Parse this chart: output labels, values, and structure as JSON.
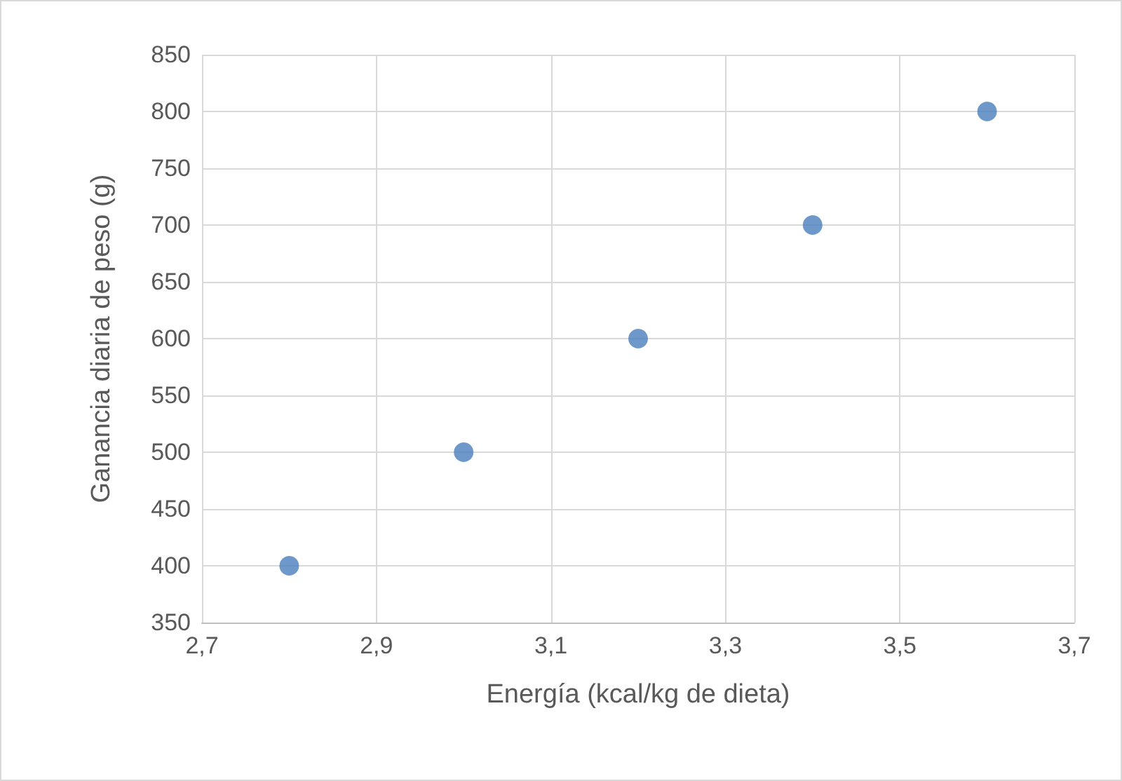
{
  "chart_data": {
    "type": "scatter",
    "xlabel": "Energía (kcal/kg de dieta)",
    "ylabel": "Ganancia diaria de peso (g)",
    "x": [
      2.8,
      3.0,
      3.2,
      3.4,
      3.6
    ],
    "series": [
      {
        "color": "#4a7ebb",
        "values": [
          400,
          500,
          600,
          700,
          800
        ]
      }
    ],
    "xlim": [
      2.7,
      3.7
    ],
    "xticks": [
      {
        "value": 2.7,
        "label": "2,7"
      },
      {
        "value": 2.9,
        "label": "2,9"
      },
      {
        "value": 3.1,
        "label": "3,1"
      },
      {
        "value": 3.3,
        "label": "3,3"
      },
      {
        "value": 3.5,
        "label": "3,5"
      },
      {
        "value": 3.7,
        "label": "3,7"
      }
    ],
    "ylim": [
      350,
      850
    ],
    "yticks": [
      350,
      400,
      450,
      500,
      550,
      600,
      650,
      700,
      750,
      800,
      850
    ],
    "grid": true,
    "marker": "circle"
  }
}
